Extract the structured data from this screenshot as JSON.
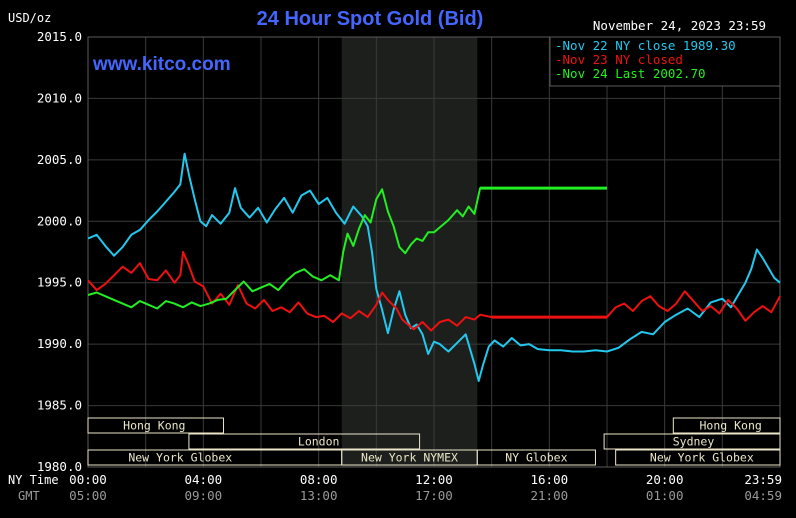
{
  "chart_data": {
    "type": "line",
    "title": "24 Hour Spot Gold (Bid)",
    "watermark": "www.kitco.com",
    "unit_label": "USD/oz",
    "timestamp": "November 24, 2023 23:59",
    "y_ticks": [
      "2015.0",
      "2010.0",
      "2005.0",
      "2000.0",
      "1995.0",
      "1990.0",
      "1985.0",
      "1980.0"
    ],
    "ylim": [
      1980,
      2015
    ],
    "x_ticks_ny": [
      "00:00",
      "04:00",
      "08:00",
      "12:00",
      "16:00",
      "20:00",
      "23:59"
    ],
    "x_ticks_gmt": [
      "05:00",
      "09:00",
      "13:00",
      "17:00",
      "21:00",
      "01:00",
      "04:59"
    ],
    "x_row_label_ny": "NY Time",
    "x_row_label_gmt": "GMT",
    "x_range_hours": [
      0,
      24
    ],
    "grid": true,
    "legend_position": "top-right",
    "colors": {
      "background": "#000000",
      "grid": "#3a3a3a",
      "axis_text": "#ffffff",
      "title": "#4466ff",
      "highlight": "#1c1f1c",
      "session_fill": "#ece6c8"
    },
    "series": [
      {
        "name": "Nov 22 NY close 1989.30",
        "color": "#22c8ee",
        "points": [
          [
            0,
            1998.6
          ],
          [
            0.3,
            1998.9
          ],
          [
            0.6,
            1998.0
          ],
          [
            0.9,
            1997.2
          ],
          [
            1.2,
            1997.9
          ],
          [
            1.5,
            1998.9
          ],
          [
            1.8,
            1999.3
          ],
          [
            2.1,
            2000.1
          ],
          [
            2.4,
            2000.8
          ],
          [
            2.7,
            2001.6
          ],
          [
            3.0,
            2002.4
          ],
          [
            3.2,
            2003.0
          ],
          [
            3.35,
            2005.5
          ],
          [
            3.5,
            2003.8
          ],
          [
            3.7,
            2001.8
          ],
          [
            3.9,
            2000.0
          ],
          [
            4.1,
            1999.6
          ],
          [
            4.3,
            2000.5
          ],
          [
            4.6,
            1999.8
          ],
          [
            4.9,
            2000.7
          ],
          [
            5.1,
            2002.7
          ],
          [
            5.3,
            2001.1
          ],
          [
            5.6,
            2000.3
          ],
          [
            5.9,
            2001.1
          ],
          [
            6.2,
            1999.9
          ],
          [
            6.5,
            2001.0
          ],
          [
            6.8,
            2001.9
          ],
          [
            7.1,
            2000.7
          ],
          [
            7.4,
            2002.1
          ],
          [
            7.7,
            2002.5
          ],
          [
            8.0,
            2001.4
          ],
          [
            8.3,
            2001.9
          ],
          [
            8.6,
            2000.7
          ],
          [
            8.9,
            1999.8
          ],
          [
            9.2,
            2001.2
          ],
          [
            9.5,
            2000.4
          ],
          [
            9.7,
            1999.6
          ],
          [
            9.85,
            1997.5
          ],
          [
            10.0,
            1994.5
          ],
          [
            10.2,
            1992.8
          ],
          [
            10.4,
            1990.9
          ],
          [
            10.6,
            1992.8
          ],
          [
            10.8,
            1994.3
          ],
          [
            11.0,
            1992.4
          ],
          [
            11.2,
            1991.3
          ],
          [
            11.4,
            1991.6
          ],
          [
            11.6,
            1990.8
          ],
          [
            11.8,
            1989.2
          ],
          [
            12.0,
            1990.2
          ],
          [
            12.2,
            1990.0
          ],
          [
            12.5,
            1989.4
          ],
          [
            12.8,
            1990.1
          ],
          [
            13.1,
            1990.8
          ],
          [
            13.4,
            1988.4
          ],
          [
            13.55,
            1987.0
          ],
          [
            13.7,
            1988.3
          ],
          [
            13.9,
            1989.8
          ],
          [
            14.1,
            1990.3
          ],
          [
            14.4,
            1989.8
          ],
          [
            14.7,
            1990.5
          ],
          [
            15.0,
            1989.9
          ],
          [
            15.3,
            1990.0
          ],
          [
            15.6,
            1989.6
          ],
          [
            16.0,
            1989.5
          ],
          [
            16.4,
            1989.5
          ],
          [
            16.8,
            1989.4
          ],
          [
            17.2,
            1989.4
          ],
          [
            17.6,
            1989.5
          ],
          [
            18.0,
            1989.4
          ],
          [
            18.4,
            1989.7
          ],
          [
            18.8,
            1990.4
          ],
          [
            19.2,
            1991.0
          ],
          [
            19.6,
            1990.8
          ],
          [
            20.0,
            1991.8
          ],
          [
            20.4,
            1992.4
          ],
          [
            20.8,
            1992.9
          ],
          [
            21.2,
            1992.2
          ],
          [
            21.6,
            1993.4
          ],
          [
            22.0,
            1993.7
          ],
          [
            22.3,
            1993.0
          ],
          [
            22.6,
            1994.2
          ],
          [
            22.8,
            1995.0
          ],
          [
            23.0,
            1996.1
          ],
          [
            23.2,
            1997.7
          ],
          [
            23.4,
            1997.0
          ],
          [
            23.6,
            1996.2
          ],
          [
            23.8,
            1995.4
          ],
          [
            24.0,
            1995.0
          ]
        ]
      },
      {
        "name": "Nov 23 NY closed",
        "color": "#ee1111",
        "points": [
          [
            0,
            1995.2
          ],
          [
            0.3,
            1994.4
          ],
          [
            0.6,
            1994.9
          ],
          [
            0.9,
            1995.6
          ],
          [
            1.2,
            1996.3
          ],
          [
            1.5,
            1995.8
          ],
          [
            1.8,
            1996.6
          ],
          [
            2.1,
            1995.3
          ],
          [
            2.4,
            1995.2
          ],
          [
            2.7,
            1996.0
          ],
          [
            3.0,
            1995.0
          ],
          [
            3.2,
            1995.6
          ],
          [
            3.3,
            1997.5
          ],
          [
            3.5,
            1996.4
          ],
          [
            3.7,
            1995.1
          ],
          [
            4.0,
            1994.7
          ],
          [
            4.3,
            1993.3
          ],
          [
            4.6,
            1994.1
          ],
          [
            4.9,
            1993.2
          ],
          [
            5.2,
            1994.8
          ],
          [
            5.5,
            1993.3
          ],
          [
            5.8,
            1992.9
          ],
          [
            6.1,
            1993.6
          ],
          [
            6.4,
            1992.7
          ],
          [
            6.7,
            1993.0
          ],
          [
            7.0,
            1992.6
          ],
          [
            7.3,
            1993.4
          ],
          [
            7.6,
            1992.5
          ],
          [
            7.9,
            1992.2
          ],
          [
            8.2,
            1992.3
          ],
          [
            8.5,
            1991.8
          ],
          [
            8.8,
            1992.5
          ],
          [
            9.1,
            1992.1
          ],
          [
            9.4,
            1992.7
          ],
          [
            9.7,
            1992.2
          ],
          [
            10.0,
            1993.2
          ],
          [
            10.2,
            1994.2
          ],
          [
            10.4,
            1993.6
          ],
          [
            10.7,
            1992.9
          ],
          [
            10.9,
            1992.0
          ],
          [
            11.1,
            1991.6
          ],
          [
            11.3,
            1991.2
          ],
          [
            11.6,
            1991.8
          ],
          [
            11.9,
            1991.1
          ],
          [
            12.2,
            1991.8
          ],
          [
            12.5,
            1992.0
          ],
          [
            12.8,
            1991.5
          ],
          [
            13.1,
            1992.2
          ],
          [
            13.4,
            1992.0
          ],
          [
            13.6,
            1992.4
          ],
          [
            14.0,
            1992.2
          ],
          [
            14.5,
            1992.2
          ],
          [
            15.0,
            1992.2
          ],
          [
            16.0,
            1992.2
          ],
          [
            17.0,
            1992.2
          ],
          [
            18.0,
            1992.2
          ],
          [
            18.3,
            1993.0
          ],
          [
            18.6,
            1993.3
          ],
          [
            18.9,
            1992.7
          ],
          [
            19.2,
            1993.5
          ],
          [
            19.5,
            1993.9
          ],
          [
            19.8,
            1993.1
          ],
          [
            20.1,
            1992.7
          ],
          [
            20.4,
            1993.3
          ],
          [
            20.7,
            1994.3
          ],
          [
            21.0,
            1993.5
          ],
          [
            21.3,
            1992.7
          ],
          [
            21.6,
            1993.1
          ],
          [
            21.9,
            1992.5
          ],
          [
            22.2,
            1993.6
          ],
          [
            22.5,
            1992.9
          ],
          [
            22.8,
            1991.9
          ],
          [
            23.1,
            1992.6
          ],
          [
            23.4,
            1993.1
          ],
          [
            23.7,
            1992.6
          ],
          [
            24.0,
            1993.9
          ]
        ]
      },
      {
        "name": "Nov 24 Last 2002.70",
        "color": "#22ee22",
        "points": [
          [
            0,
            1994.0
          ],
          [
            0.3,
            1994.2
          ],
          [
            0.6,
            1993.9
          ],
          [
            0.9,
            1993.6
          ],
          [
            1.2,
            1993.3
          ],
          [
            1.5,
            1993.0
          ],
          [
            1.8,
            1993.5
          ],
          [
            2.1,
            1993.2
          ],
          [
            2.4,
            1992.9
          ],
          [
            2.7,
            1993.5
          ],
          [
            3.0,
            1993.3
          ],
          [
            3.3,
            1993.0
          ],
          [
            3.6,
            1993.4
          ],
          [
            3.9,
            1993.1
          ],
          [
            4.2,
            1993.3
          ],
          [
            4.5,
            1993.6
          ],
          [
            4.8,
            1993.7
          ],
          [
            5.1,
            1994.4
          ],
          [
            5.4,
            1995.1
          ],
          [
            5.7,
            1994.3
          ],
          [
            6.0,
            1994.6
          ],
          [
            6.3,
            1994.9
          ],
          [
            6.6,
            1994.4
          ],
          [
            6.9,
            1995.2
          ],
          [
            7.2,
            1995.8
          ],
          [
            7.5,
            1996.1
          ],
          [
            7.8,
            1995.5
          ],
          [
            8.1,
            1995.2
          ],
          [
            8.4,
            1995.6
          ],
          [
            8.7,
            1995.2
          ],
          [
            8.85,
            1997.5
          ],
          [
            9.0,
            1999.0
          ],
          [
            9.2,
            1998.0
          ],
          [
            9.4,
            1999.4
          ],
          [
            9.6,
            2000.5
          ],
          [
            9.8,
            1999.9
          ],
          [
            10.0,
            2001.8
          ],
          [
            10.2,
            2002.6
          ],
          [
            10.4,
            2000.8
          ],
          [
            10.6,
            1999.6
          ],
          [
            10.8,
            1997.9
          ],
          [
            11.0,
            1997.4
          ],
          [
            11.2,
            1998.1
          ],
          [
            11.4,
            1998.6
          ],
          [
            11.6,
            1998.4
          ],
          [
            11.8,
            1999.1
          ],
          [
            12.0,
            1999.1
          ],
          [
            12.2,
            1999.5
          ],
          [
            12.5,
            2000.1
          ],
          [
            12.8,
            2000.9
          ],
          [
            13.0,
            2000.4
          ],
          [
            13.2,
            2001.2
          ],
          [
            13.4,
            2000.6
          ],
          [
            13.6,
            2002.7
          ],
          [
            14.0,
            2002.7
          ],
          [
            15.0,
            2002.7
          ],
          [
            16.0,
            2002.7
          ],
          [
            17.0,
            2002.7
          ],
          [
            18.0,
            2002.7
          ]
        ]
      }
    ],
    "sessions": [
      {
        "label": "Hong Kong",
        "row": 0,
        "ranges": [
          [
            0,
            4.7
          ],
          [
            20.3,
            24
          ]
        ]
      },
      {
        "label": "London",
        "row": 1,
        "ranges": [
          [
            3.5,
            11.5
          ]
        ]
      },
      {
        "label": "Sydney",
        "row": 1,
        "ranges": [
          [
            17.9,
            24
          ]
        ]
      },
      {
        "label": "New York Globex",
        "row": 2,
        "ranges": [
          [
            0,
            8.8
          ],
          [
            18.3,
            24
          ]
        ]
      },
      {
        "label": "New York NYMEX",
        "row": 2,
        "ranges": [
          [
            8.8,
            13.5
          ]
        ]
      },
      {
        "label": "NY Globex",
        "row": 2,
        "ranges": [
          [
            13.5,
            17.6
          ]
        ]
      }
    ],
    "highlight_range_hours": [
      8.8,
      13.5
    ]
  }
}
